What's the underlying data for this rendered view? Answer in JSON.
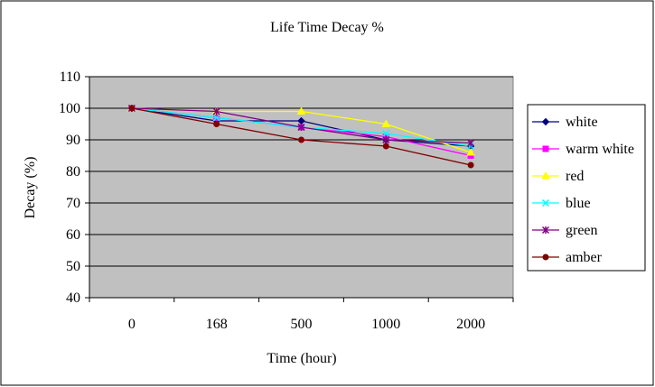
{
  "chart_data": {
    "type": "line",
    "title": "Life Time Decay %",
    "xlabel": "Time (hour)",
    "ylabel": "Decay (%)",
    "categories": [
      "0",
      "168",
      "500",
      "1000",
      "2000"
    ],
    "ylim": [
      40,
      110
    ],
    "yticks": [
      40,
      50,
      60,
      70,
      80,
      90,
      100,
      110
    ],
    "grid": "horizontal",
    "legend_position": "right",
    "plot_background": "#c0c0c0",
    "series": [
      {
        "name": "white",
        "color": "#000080",
        "marker": "diamond",
        "values": [
          100,
          96,
          96,
          90,
          88
        ]
      },
      {
        "name": "warm white",
        "color": "#ff00ff",
        "marker": "square",
        "values": [
          100,
          97,
          94,
          91,
          85
        ]
      },
      {
        "name": "red",
        "color": "#ffff00",
        "marker": "triangle",
        "values": [
          100,
          99,
          99,
          95,
          86
        ]
      },
      {
        "name": "blue",
        "color": "#00ffff",
        "marker": "x",
        "values": [
          100,
          97,
          94,
          92,
          88
        ]
      },
      {
        "name": "green",
        "color": "#800080",
        "marker": "star",
        "values": [
          100,
          99,
          94,
          90,
          89
        ]
      },
      {
        "name": "amber",
        "color": "#800000",
        "marker": "circle",
        "values": [
          100,
          95,
          90,
          88,
          82
        ]
      }
    ]
  }
}
